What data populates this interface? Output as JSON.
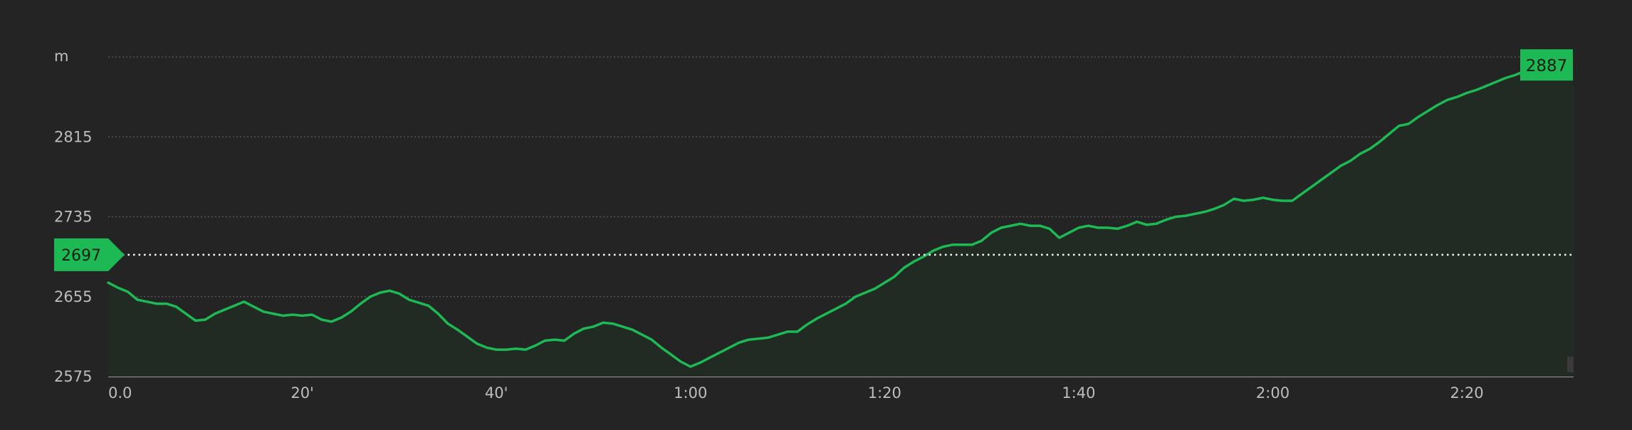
{
  "chart_data": {
    "type": "area",
    "y_unit": "m",
    "ylim": [
      2575,
      2895
    ],
    "y_ticks": [
      {
        "value": 2815,
        "label": "2815"
      },
      {
        "value": 2735,
        "label": "2735"
      },
      {
        "value": 2655,
        "label": "2655"
      },
      {
        "value": 2575,
        "label": "2575"
      }
    ],
    "xlim": [
      0,
      151
    ],
    "x_ticks": [
      {
        "value": 0,
        "label": "0.0"
      },
      {
        "value": 20,
        "label": "20'"
      },
      {
        "value": 40,
        "label": "40'"
      },
      {
        "value": 60,
        "label": "1:00"
      },
      {
        "value": 80,
        "label": "1:20"
      },
      {
        "value": 100,
        "label": "1:40"
      },
      {
        "value": 120,
        "label": "2:00"
      },
      {
        "value": 140,
        "label": "2:20"
      }
    ],
    "grid": true,
    "reference_line": {
      "value": 2697,
      "label": "2697"
    },
    "max_marker": {
      "value": 2887,
      "label": "2887"
    },
    "series": [
      {
        "points": [
          [
            0,
            2669
          ],
          [
            1,
            2664
          ],
          [
            2,
            2660
          ],
          [
            3,
            2652
          ],
          [
            4,
            2650
          ],
          [
            5,
            2648
          ],
          [
            6,
            2648
          ],
          [
            7,
            2645
          ],
          [
            8,
            2638
          ],
          [
            9,
            2631
          ],
          [
            10,
            2632
          ],
          [
            11,
            2638
          ],
          [
            12,
            2642
          ],
          [
            13,
            2646
          ],
          [
            14,
            2650
          ],
          [
            15,
            2645
          ],
          [
            16,
            2640
          ],
          [
            17,
            2638
          ],
          [
            18,
            2636
          ],
          [
            19,
            2637
          ],
          [
            20,
            2636
          ],
          [
            21,
            2637
          ],
          [
            22,
            2632
          ],
          [
            23,
            2630
          ],
          [
            24,
            2634
          ],
          [
            25,
            2640
          ],
          [
            26,
            2648
          ],
          [
            27,
            2655
          ],
          [
            28,
            2659
          ],
          [
            29,
            2661
          ],
          [
            30,
            2658
          ],
          [
            31,
            2652
          ],
          [
            32,
            2649
          ],
          [
            33,
            2646
          ],
          [
            34,
            2638
          ],
          [
            35,
            2628
          ],
          [
            36,
            2622
          ],
          [
            37,
            2615
          ],
          [
            38,
            2608
          ],
          [
            39,
            2604
          ],
          [
            40,
            2602
          ],
          [
            41,
            2602
          ],
          [
            42,
            2603
          ],
          [
            43,
            2602
          ],
          [
            44,
            2606
          ],
          [
            45,
            2611
          ],
          [
            46,
            2612
          ],
          [
            47,
            2611
          ],
          [
            48,
            2618
          ],
          [
            49,
            2623
          ],
          [
            50,
            2625
          ],
          [
            51,
            2629
          ],
          [
            52,
            2628
          ],
          [
            53,
            2625
          ],
          [
            54,
            2622
          ],
          [
            55,
            2617
          ],
          [
            56,
            2612
          ],
          [
            57,
            2604
          ],
          [
            58,
            2597
          ],
          [
            59,
            2590
          ],
          [
            60,
            2585
          ],
          [
            61,
            2589
          ],
          [
            62,
            2594
          ],
          [
            63,
            2599
          ],
          [
            64,
            2604
          ],
          [
            65,
            2609
          ],
          [
            66,
            2612
          ],
          [
            67,
            2613
          ],
          [
            68,
            2614
          ],
          [
            69,
            2617
          ],
          [
            70,
            2620
          ],
          [
            71,
            2620
          ],
          [
            72,
            2627
          ],
          [
            73,
            2633
          ],
          [
            74,
            2638
          ],
          [
            75,
            2643
          ],
          [
            76,
            2648
          ],
          [
            77,
            2655
          ],
          [
            78,
            2659
          ],
          [
            79,
            2663
          ],
          [
            80,
            2669
          ],
          [
            81,
            2675
          ],
          [
            82,
            2684
          ],
          [
            83,
            2690
          ],
          [
            84,
            2695
          ],
          [
            85,
            2701
          ],
          [
            86,
            2705
          ],
          [
            87,
            2707
          ],
          [
            88,
            2707
          ],
          [
            89,
            2707
          ],
          [
            90,
            2711
          ],
          [
            91,
            2719
          ],
          [
            92,
            2724
          ],
          [
            93,
            2726
          ],
          [
            94,
            2728
          ],
          [
            95,
            2726
          ],
          [
            96,
            2726
          ],
          [
            97,
            2723
          ],
          [
            98,
            2714
          ],
          [
            99,
            2719
          ],
          [
            100,
            2724
          ],
          [
            101,
            2726
          ],
          [
            102,
            2724
          ],
          [
            103,
            2724
          ],
          [
            104,
            2723
          ],
          [
            105,
            2726
          ],
          [
            106,
            2730
          ],
          [
            107,
            2727
          ],
          [
            108,
            2728
          ],
          [
            109,
            2732
          ],
          [
            110,
            2735
          ],
          [
            111,
            2736
          ],
          [
            112,
            2738
          ],
          [
            113,
            2740
          ],
          [
            114,
            2743
          ],
          [
            115,
            2747
          ],
          [
            116,
            2753
          ],
          [
            117,
            2751
          ],
          [
            118,
            2752
          ],
          [
            119,
            2754
          ],
          [
            120,
            2752
          ],
          [
            121,
            2751
          ],
          [
            122,
            2751
          ],
          [
            123,
            2758
          ],
          [
            124,
            2765
          ],
          [
            125,
            2772
          ],
          [
            126,
            2779
          ],
          [
            127,
            2786
          ],
          [
            128,
            2791
          ],
          [
            129,
            2798
          ],
          [
            130,
            2803
          ],
          [
            131,
            2810
          ],
          [
            132,
            2818
          ],
          [
            133,
            2826
          ],
          [
            134,
            2828
          ],
          [
            135,
            2835
          ],
          [
            136,
            2841
          ],
          [
            137,
            2847
          ],
          [
            138,
            2852
          ],
          [
            139,
            2855
          ],
          [
            140,
            2859
          ],
          [
            141,
            2862
          ],
          [
            142,
            2866
          ],
          [
            143,
            2870
          ],
          [
            144,
            2874
          ],
          [
            145,
            2877
          ],
          [
            146,
            2881
          ],
          [
            147,
            2884
          ],
          [
            148,
            2887
          ]
        ]
      }
    ],
    "colors": {
      "line": "#1db954",
      "area_fill": "#212a23",
      "grid": "#5c5c5c",
      "axis_text": "#bdbdbd",
      "marker_fill": "#1db954",
      "marker_text": "#0f1f12",
      "baseline": "#c8c8c8"
    }
  }
}
